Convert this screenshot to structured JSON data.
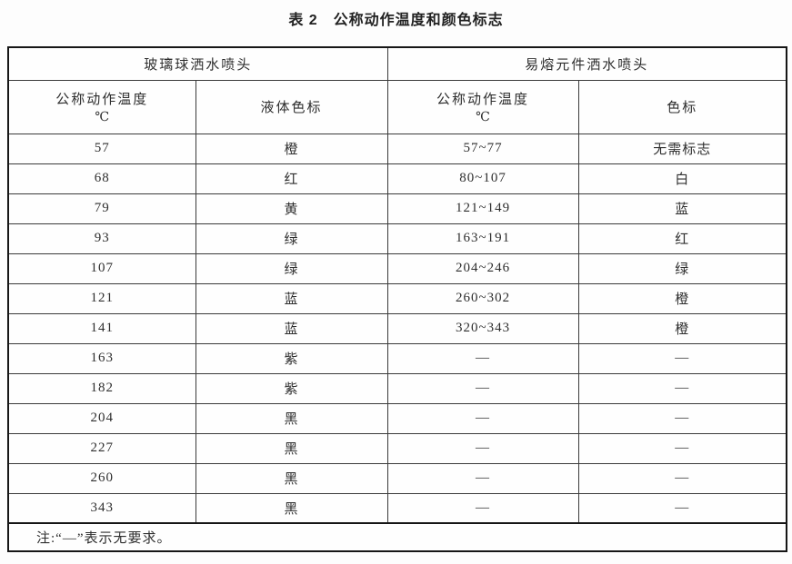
{
  "title": "表 2　公称动作温度和颜色标志",
  "table": {
    "group_headers": [
      "玻璃球洒水喷头",
      "易熔元件洒水喷头"
    ],
    "sub_headers": [
      {
        "line1": "公称动作温度",
        "line2": "℃"
      },
      {
        "line1": "液体色标"
      },
      {
        "line1": "公称动作温度",
        "line2": "℃"
      },
      {
        "line1": "色标"
      }
    ],
    "rows": [
      [
        "57",
        "橙",
        "57~77",
        "无需标志"
      ],
      [
        "68",
        "红",
        "80~107",
        "白"
      ],
      [
        "79",
        "黄",
        "121~149",
        "蓝"
      ],
      [
        "93",
        "绿",
        "163~191",
        "红"
      ],
      [
        "107",
        "绿",
        "204~246",
        "绿"
      ],
      [
        "121",
        "蓝",
        "260~302",
        "橙"
      ],
      [
        "141",
        "蓝",
        "320~343",
        "橙"
      ],
      [
        "163",
        "紫",
        "—",
        "—"
      ],
      [
        "182",
        "紫",
        "—",
        "—"
      ],
      [
        "204",
        "黑",
        "—",
        "—"
      ],
      [
        "227",
        "黑",
        "—",
        "—"
      ],
      [
        "260",
        "黑",
        "—",
        "—"
      ],
      [
        "343",
        "黑",
        "—",
        "—"
      ]
    ],
    "note": "注:“—”表示无要求。"
  }
}
